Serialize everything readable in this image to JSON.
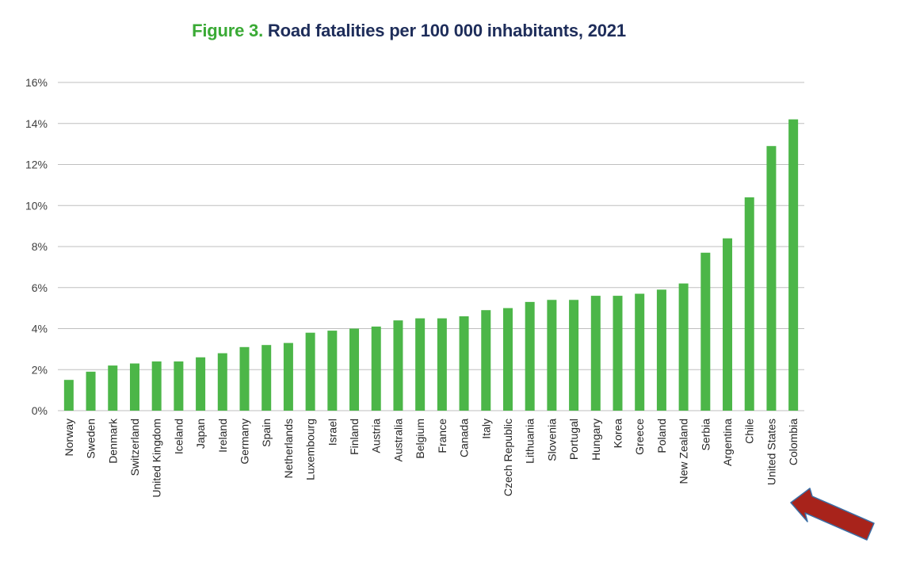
{
  "title": {
    "prefix": "Figure 3.",
    "text": "Road fatalities per 100 000 inhabitants, 2021"
  },
  "colors": {
    "bar": "#4cb648",
    "title_prefix": "#3aaa35",
    "title_main": "#1e2d5a",
    "gridline": "#bfbfbf",
    "arrow_fill": "#a8231b",
    "arrow_outline": "#3a6ea5"
  },
  "annotation": {
    "type": "arrow",
    "points_to": "United States"
  },
  "chart_data": {
    "type": "bar",
    "title": "Road fatalities per 100 000 inhabitants, 2021",
    "xlabel": "",
    "ylabel": "",
    "ylim": [
      0,
      16
    ],
    "yticks": [
      "0%",
      "2%",
      "4%",
      "6%",
      "8%",
      "10%",
      "12%",
      "14%",
      "16%"
    ],
    "ytick_values": [
      0,
      2,
      4,
      6,
      8,
      10,
      12,
      14,
      16
    ],
    "grid": true,
    "legend": "none",
    "categories": [
      "Norway",
      "Sweden",
      "Denmark",
      "Switzerland",
      "United Kingdom",
      "Iceland",
      "Japan",
      "Ireland",
      "Germany",
      "Spain",
      "Netherlands",
      "Luxembourg",
      "Israel",
      "Finland",
      "Austria",
      "Australia",
      "Belgium",
      "France",
      "Canada",
      "Italy",
      "Czech Republic",
      "Lithuania",
      "Slovenia",
      "Portugal",
      "Hungary",
      "Korea",
      "Greece",
      "Poland",
      "New Zealand",
      "Serbia",
      "Argentina",
      "Chile",
      "United States",
      "Colombia"
    ],
    "values": [
      1.5,
      1.9,
      2.2,
      2.3,
      2.4,
      2.4,
      2.6,
      2.8,
      3.1,
      3.2,
      3.3,
      3.8,
      3.9,
      4.0,
      4.1,
      4.4,
      4.5,
      4.5,
      4.6,
      4.9,
      5.0,
      5.3,
      5.4,
      5.4,
      5.6,
      5.6,
      5.7,
      5.9,
      6.2,
      7.7,
      8.4,
      10.4,
      12.9,
      14.2
    ]
  }
}
